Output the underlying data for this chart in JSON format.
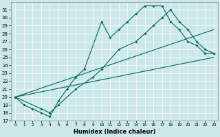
{
  "bg_color": "#cce8e8",
  "line_color": "#006666",
  "xlabel": "Humidex (Indice chaleur)",
  "xlim": [
    -0.5,
    23.5
  ],
  "ylim": [
    17,
    32
  ],
  "yticks": [
    17,
    18,
    19,
    20,
    21,
    22,
    23,
    24,
    25,
    26,
    27,
    28,
    29,
    30,
    31
  ],
  "xticks": [
    0,
    1,
    2,
    3,
    4,
    5,
    6,
    7,
    8,
    9,
    10,
    11,
    12,
    13,
    14,
    15,
    16,
    17,
    18,
    19,
    20,
    21,
    22,
    23
  ],
  "line1_x": [
    0,
    1,
    2,
    3,
    4,
    5,
    6,
    7,
    8,
    10,
    11,
    12,
    13,
    14,
    15,
    16,
    17,
    18,
    19,
    20,
    21,
    22,
    23
  ],
  "line1_y": [
    20,
    19,
    18.5,
    18,
    17.5,
    19.5,
    21,
    22.5,
    23.5,
    29.5,
    27.5,
    28.5,
    29.5,
    30.5,
    31.5,
    31.5,
    31.5,
    29.5,
    28.5,
    27,
    26.5,
    25.5,
    25.5
  ],
  "line2_x": [
    0,
    3,
    4,
    5,
    7,
    9,
    10,
    12,
    14,
    15,
    16,
    17,
    18,
    19,
    20,
    21,
    22,
    23
  ],
  "line2_y": [
    20,
    18.5,
    18,
    19,
    21,
    22.5,
    23.5,
    26,
    27,
    28,
    29,
    30,
    31,
    29.5,
    28.5,
    27,
    26,
    25.5
  ],
  "line3_x": [
    0,
    23
  ],
  "line3_y": [
    20,
    28.5
  ],
  "line4_x": [
    0,
    23
  ],
  "line4_y": [
    20,
    25.0
  ]
}
